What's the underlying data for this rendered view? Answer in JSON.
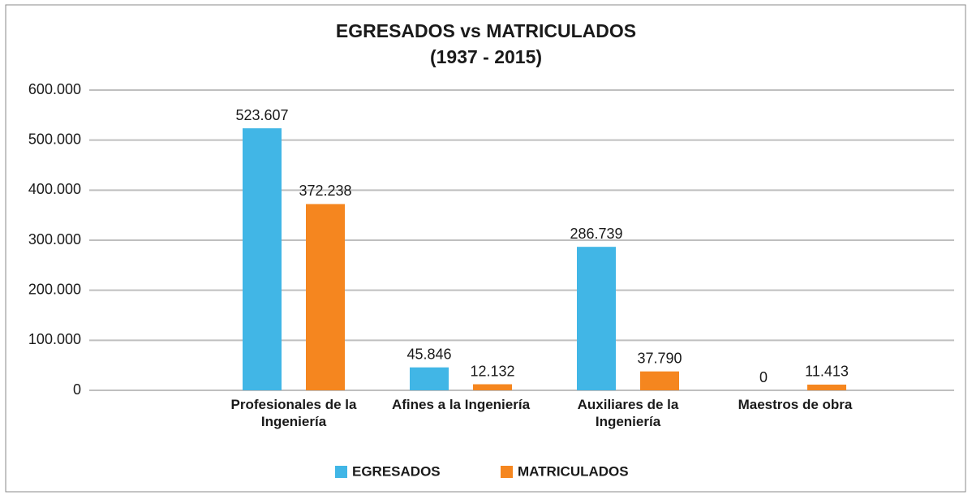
{
  "chart_data": {
    "type": "bar",
    "title": "EGRESADOS vs MATRICULADOS",
    "subtitle": "(1937 - 2015)",
    "categories": [
      "Profesionales de la Ingeniería",
      "Afines a la Ingeniería",
      "Auxiliares de la Ingeniería",
      "Maestros de obra"
    ],
    "series": [
      {
        "name": "EGRESADOS",
        "color": "#41b6e6",
        "values": [
          523607,
          45846,
          286739,
          0
        ],
        "value_labels": [
          "523.607",
          "45.846",
          "286.739",
          "0"
        ]
      },
      {
        "name": "MATRICULADOS",
        "color": "#f5861f",
        "values": [
          372238,
          12132,
          37790,
          11413
        ],
        "value_labels": [
          "372.238",
          "12.132",
          "37.790",
          "11.413"
        ]
      }
    ],
    "ylim": [
      0,
      600000
    ],
    "yticks": [
      0,
      {
        "value": 100000,
        "label": "100.000"
      },
      {
        "value": 200000,
        "label": "200.000"
      },
      {
        "value": 300000,
        "label": "300.000"
      },
      {
        "value": 400000,
        "label": "400.000"
      },
      {
        "value": 500000,
        "label": "500.000"
      },
      {
        "value": 600000,
        "label": "600.000"
      }
    ],
    "grid": true,
    "legend": "bottom"
  }
}
